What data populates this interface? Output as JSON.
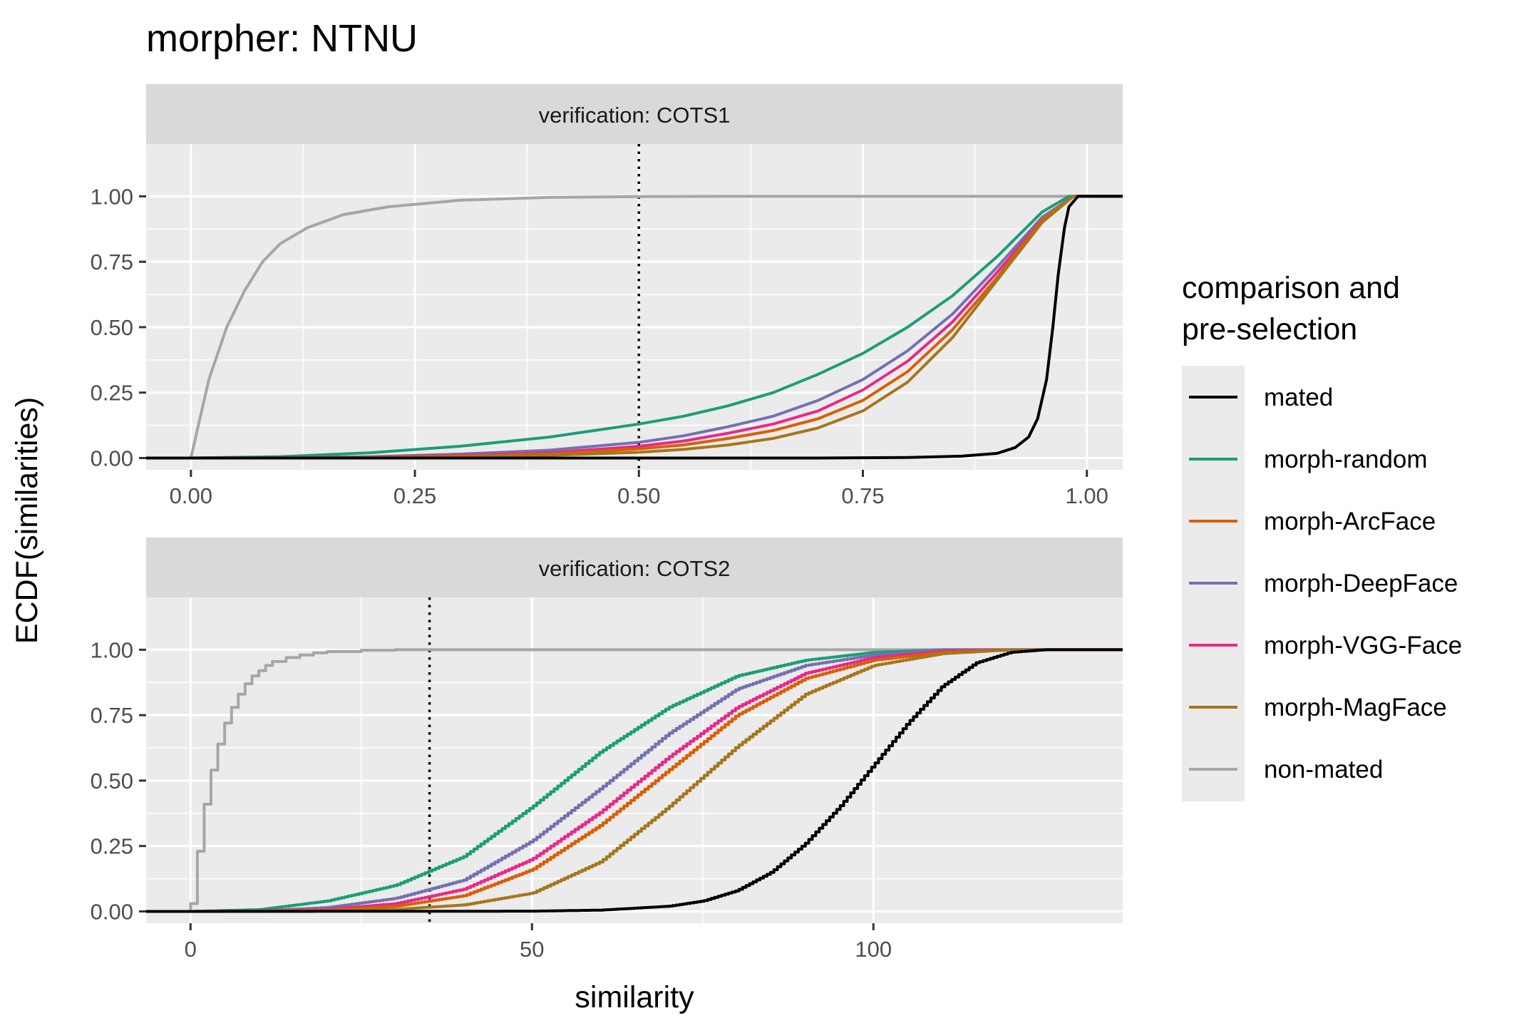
{
  "colors": {
    "mated": "#000000",
    "morph-random": "#1B9E77",
    "morph-ArcFace": "#D95F02",
    "morph-DeepFace": "#7570B3",
    "morph-VGG-Face": "#E7298A",
    "morph-MagFace": "#A6761D",
    "non-mated": "#A6A6A6"
  },
  "chart_data": {
    "type": "line",
    "title": "morpher: NTNU",
    "ylabel": "ECDF(similarities)",
    "xlabel": "similarity",
    "legend": {
      "title_line1": "comparison and",
      "title_line2": "pre-selection",
      "position": "right",
      "entries": [
        "mated",
        "morph-random",
        "morph-ArcFace",
        "morph-DeepFace",
        "morph-VGG-Face",
        "morph-MagFace",
        "non-mated"
      ]
    },
    "panels": [
      {
        "strip": "verification: COTS1",
        "xlim": [
          -0.05,
          1.04
        ],
        "ylim": [
          -0.045,
          1.2
        ],
        "xticks": [
          0,
          0.25,
          0.5,
          0.75,
          1.0
        ],
        "xtick_labels": [
          "0.00",
          "0.25",
          "0.50",
          "0.75",
          "1.00"
        ],
        "yticks": [
          0,
          0.25,
          0.5,
          0.75,
          1.0
        ],
        "ytick_labels": [
          "0.00",
          "0.25",
          "0.50",
          "0.75",
          "1.00"
        ],
        "threshold": 0.5,
        "stepped": false,
        "series": [
          {
            "name": "non-mated",
            "x": [
              -0.05,
              0,
              0.02,
              0.04,
              0.06,
              0.08,
              0.1,
              0.13,
              0.17,
              0.22,
              0.3,
              0.4,
              0.5,
              0.6,
              1.04
            ],
            "values": [
              0,
              0,
              0.3,
              0.5,
              0.64,
              0.75,
              0.82,
              0.88,
              0.93,
              0.96,
              0.985,
              0.996,
              0.999,
              1.0,
              1.0
            ]
          },
          {
            "name": "morph-random",
            "x": [
              -0.05,
              0,
              0.1,
              0.2,
              0.3,
              0.4,
              0.5,
              0.55,
              0.6,
              0.65,
              0.7,
              0.75,
              0.8,
              0.85,
              0.9,
              0.95,
              0.98,
              1.04
            ],
            "values": [
              0,
              0,
              0.005,
              0.02,
              0.045,
              0.08,
              0.13,
              0.16,
              0.2,
              0.25,
              0.32,
              0.4,
              0.5,
              0.62,
              0.77,
              0.94,
              1.0,
              1.0
            ]
          },
          {
            "name": "morph-DeepFace",
            "x": [
              -0.05,
              0,
              0.1,
              0.2,
              0.3,
              0.4,
              0.5,
              0.55,
              0.6,
              0.65,
              0.7,
              0.75,
              0.8,
              0.85,
              0.9,
              0.95,
              0.985,
              1.04
            ],
            "values": [
              0,
              0,
              0.001,
              0.005,
              0.015,
              0.03,
              0.06,
              0.085,
              0.12,
              0.16,
              0.22,
              0.3,
              0.41,
              0.55,
              0.73,
              0.92,
              1.0,
              1.0
            ]
          },
          {
            "name": "morph-VGG-Face",
            "x": [
              -0.05,
              0,
              0.1,
              0.2,
              0.3,
              0.4,
              0.5,
              0.55,
              0.6,
              0.65,
              0.7,
              0.75,
              0.8,
              0.85,
              0.9,
              0.95,
              0.985,
              1.04
            ],
            "values": [
              0,
              0,
              0.0005,
              0.003,
              0.01,
              0.02,
              0.045,
              0.065,
              0.095,
              0.13,
              0.18,
              0.26,
              0.37,
              0.52,
              0.71,
              0.91,
              1.0,
              1.0
            ]
          },
          {
            "name": "morph-ArcFace",
            "x": [
              -0.05,
              0,
              0.1,
              0.2,
              0.3,
              0.4,
              0.5,
              0.55,
              0.6,
              0.65,
              0.7,
              0.75,
              0.8,
              0.85,
              0.9,
              0.95,
              0.985,
              1.04
            ],
            "values": [
              0,
              0,
              0.0003,
              0.002,
              0.007,
              0.015,
              0.035,
              0.05,
              0.075,
              0.105,
              0.15,
              0.22,
              0.33,
              0.49,
              0.69,
              0.91,
              1.0,
              1.0
            ]
          },
          {
            "name": "morph-MagFace",
            "x": [
              -0.05,
              0,
              0.1,
              0.2,
              0.3,
              0.4,
              0.5,
              0.55,
              0.6,
              0.65,
              0.7,
              0.75,
              0.8,
              0.85,
              0.9,
              0.95,
              0.985,
              1.04
            ],
            "values": [
              0,
              0,
              0.0002,
              0.001,
              0.004,
              0.01,
              0.022,
              0.033,
              0.05,
              0.075,
              0.115,
              0.18,
              0.29,
              0.46,
              0.68,
              0.9,
              1.0,
              1.0
            ]
          },
          {
            "name": "mated",
            "x": [
              -0.05,
              0,
              0.7,
              0.8,
              0.86,
              0.9,
              0.92,
              0.935,
              0.945,
              0.955,
              0.962,
              0.968,
              0.975,
              0.98,
              0.99,
              1.04
            ],
            "values": [
              0,
              0,
              0,
              0.002,
              0.007,
              0.018,
              0.04,
              0.08,
              0.15,
              0.3,
              0.5,
              0.7,
              0.88,
              0.96,
              1.0,
              1.0
            ]
          }
        ]
      },
      {
        "strip": "verification: COTS2",
        "xlim": [
          -6.5,
          136.5
        ],
        "ylim": [
          -0.045,
          1.2
        ],
        "xticks": [
          0,
          50,
          100
        ],
        "xtick_labels": [
          "0",
          "50",
          "100"
        ],
        "yticks": [
          0,
          0.25,
          0.5,
          0.75,
          1.0
        ],
        "ytick_labels": [
          "0.00",
          "0.25",
          "0.50",
          "0.75",
          "1.00"
        ],
        "threshold": 35,
        "stepped": true,
        "series": [
          {
            "name": "non-mated",
            "x": [
              -6.5,
              0,
              1,
              2,
              3,
              4,
              5,
              6,
              7,
              8,
              9,
              10,
              11,
              12,
              14,
              16,
              18,
              20,
              25,
              30,
              136.5
            ],
            "values": [
              0,
              0.03,
              0.23,
              0.41,
              0.54,
              0.64,
              0.72,
              0.78,
              0.83,
              0.87,
              0.9,
              0.92,
              0.94,
              0.955,
              0.97,
              0.98,
              0.988,
              0.993,
              0.998,
              1.0,
              1.0
            ]
          },
          {
            "name": "morph-random",
            "x": [
              -6.5,
              0,
              10,
              20,
              30,
              40,
              50,
              60,
              70,
              80,
              90,
              100,
              110,
              136.5
            ],
            "values": [
              0,
              0,
              0.007,
              0.04,
              0.1,
              0.21,
              0.4,
              0.61,
              0.78,
              0.9,
              0.96,
              0.99,
              1.0,
              1.0
            ]
          },
          {
            "name": "morph-DeepFace",
            "x": [
              -6.5,
              0,
              10,
              20,
              30,
              40,
              50,
              60,
              70,
              80,
              90,
              100,
              110,
              136.5
            ],
            "values": [
              0,
              0,
              0.002,
              0.015,
              0.05,
              0.12,
              0.27,
              0.47,
              0.68,
              0.85,
              0.94,
              0.98,
              1.0,
              1.0
            ]
          },
          {
            "name": "morph-VGG-Face",
            "x": [
              -6.5,
              0,
              10,
              20,
              30,
              40,
              50,
              60,
              70,
              80,
              90,
              100,
              110,
              120,
              136.5
            ],
            "values": [
              0,
              0,
              0.001,
              0.008,
              0.03,
              0.085,
              0.2,
              0.38,
              0.59,
              0.78,
              0.91,
              0.97,
              0.995,
              1.0,
              1.0
            ]
          },
          {
            "name": "morph-ArcFace",
            "x": [
              -6.5,
              0,
              10,
              20,
              30,
              40,
              50,
              60,
              70,
              80,
              90,
              100,
              110,
              120,
              136.5
            ],
            "values": [
              0,
              0,
              0.0005,
              0.005,
              0.02,
              0.06,
              0.16,
              0.33,
              0.54,
              0.75,
              0.89,
              0.96,
              0.99,
              1.0,
              1.0
            ]
          },
          {
            "name": "morph-MagFace",
            "x": [
              -6.5,
              0,
              10,
              20,
              30,
              40,
              50,
              60,
              70,
              80,
              90,
              100,
              110,
              120,
              136.5
            ],
            "values": [
              0,
              0,
              0.0002,
              0.002,
              0.008,
              0.025,
              0.07,
              0.19,
              0.4,
              0.63,
              0.83,
              0.94,
              0.985,
              1.0,
              1.0
            ]
          },
          {
            "name": "mated",
            "x": [
              -6.5,
              0,
              50,
              60,
              70,
              75,
              80,
              85,
              90,
              95,
              100,
              105,
              110,
              115,
              120,
              125,
              136.5
            ],
            "values": [
              0,
              0,
              0.001,
              0.005,
              0.02,
              0.04,
              0.08,
              0.15,
              0.26,
              0.4,
              0.56,
              0.72,
              0.86,
              0.95,
              0.99,
              1.0,
              1.0
            ]
          }
        ]
      }
    ]
  }
}
